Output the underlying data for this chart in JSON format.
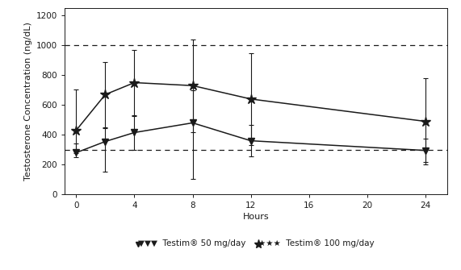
{
  "hours_50": [
    0,
    2,
    4,
    8,
    12,
    24
  ],
  "dose50_mean": [
    280,
    355,
    415,
    480,
    360,
    295
  ],
  "dose50_err_upper": [
    60,
    90,
    110,
    220,
    105,
    80
  ],
  "dose50_err_lower": [
    30,
    205,
    115,
    375,
    105,
    80
  ],
  "hours_100": [
    0,
    2,
    4,
    8,
    12,
    24
  ],
  "dose100_mean": [
    430,
    670,
    750,
    730,
    640,
    490
  ],
  "dose100_err_upper": [
    275,
    220,
    220,
    310,
    310,
    290
  ],
  "dose100_err_lower": [
    155,
    220,
    220,
    310,
    310,
    290
  ],
  "hline_upper": 1000,
  "hline_lower": 300,
  "ylim": [
    0,
    1250
  ],
  "yticks": [
    0,
    200,
    400,
    600,
    800,
    1000,
    1200
  ],
  "xticks": [
    0,
    4,
    8,
    12,
    16,
    20,
    24
  ],
  "xlim": [
    -0.8,
    25.5
  ],
  "xlabel": "Hours",
  "ylabel": "Testosterone Concentration (ng/dL)",
  "legend_50": "Testim® 50 mg/day",
  "legend_100": "Testim® 100 mg/day",
  "color": "#1a1a1a",
  "background": "#ffffff",
  "tick_fontsize": 7.5,
  "label_fontsize": 8,
  "legend_fontsize": 7.5
}
